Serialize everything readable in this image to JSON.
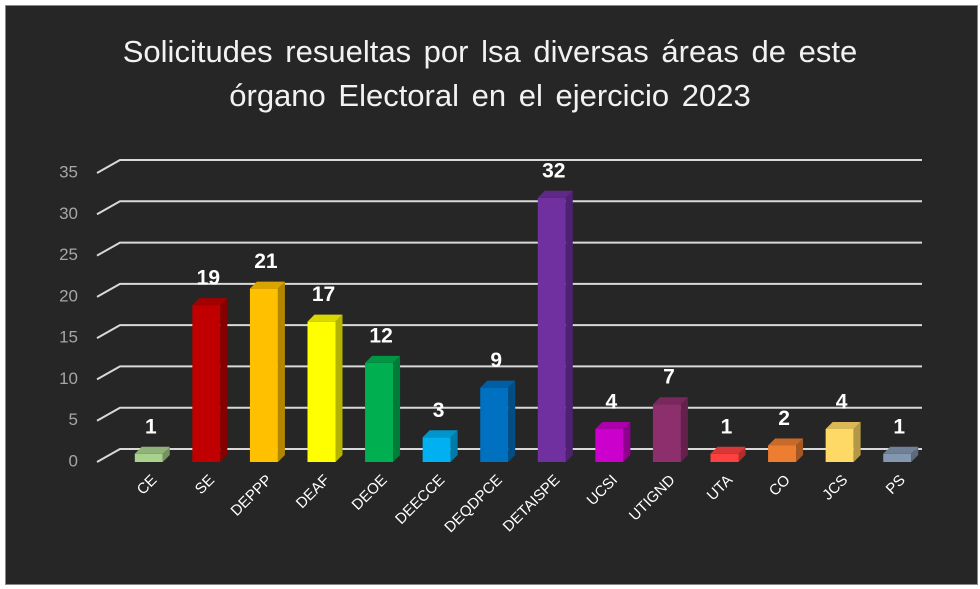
{
  "chart_data": {
    "type": "bar3d",
    "title": "Solicitudes resueltas por lsa diversas áreas de este órgano Electoral en el ejercicio 2023",
    "categories": [
      "CE",
      "SE",
      "DEPPP",
      "DEAF",
      "DEOE",
      "DEECCE",
      "DEQDPCE",
      "DETAISPE",
      "UCSI",
      "UTIGND",
      "UTA",
      "CO",
      "JCS",
      "PS"
    ],
    "values": [
      1,
      19,
      21,
      17,
      12,
      3,
      9,
      32,
      4,
      7,
      1,
      2,
      4,
      1
    ],
    "colors": [
      "#a9d18e",
      "#c00000",
      "#ffc000",
      "#ffff00",
      "#00b050",
      "#00b0f0",
      "#0070c0",
      "#7030a0",
      "#cc00cc",
      "#8e2f6d",
      "#ff4040",
      "#ed7d31",
      "#ffd966",
      "#8497b0"
    ],
    "ylim": [
      0,
      35
    ],
    "yticks": [
      0,
      5,
      10,
      15,
      20,
      25,
      30,
      35
    ],
    "grid": true
  }
}
